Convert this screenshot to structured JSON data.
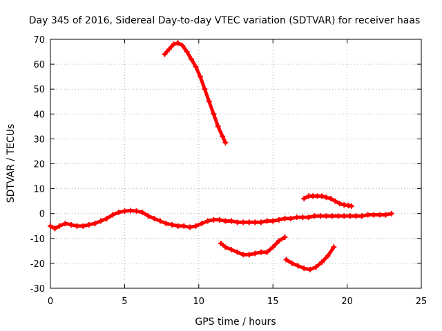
{
  "chart_data": {
    "type": "scatter",
    "title": "Day 345 of 2016, Sidereal Day-to-day VTEC variation (SDTVAR) for receiver haas",
    "xlabel": "GPS time / hours",
    "ylabel": "SDTVAR / TECUs",
    "xlim": [
      0,
      25
    ],
    "ylim": [
      -30,
      70
    ],
    "xticks": [
      0,
      5,
      10,
      15,
      20,
      25
    ],
    "yticks": [
      -30,
      -20,
      -10,
      0,
      10,
      20,
      30,
      40,
      50,
      60,
      70
    ],
    "grid": true,
    "color": "#ff0000",
    "marker": "plus",
    "series": [
      {
        "name": "main-arc",
        "x": [
          0.0,
          0.3,
          0.6,
          1.0,
          1.4,
          1.8,
          2.2,
          2.6,
          3.0,
          3.4,
          3.8,
          4.2,
          4.6,
          5.0,
          5.4,
          5.8,
          6.2,
          6.6,
          7.0,
          7.4,
          7.8,
          8.2,
          8.6,
          9.0,
          9.4,
          9.8,
          10.2,
          10.6,
          11.0,
          11.4,
          11.8,
          12.2,
          12.6,
          13.0,
          13.4,
          13.8,
          14.2,
          14.6,
          15.0,
          15.4,
          15.8,
          16.2,
          16.6,
          17.0,
          17.4,
          17.8,
          18.2,
          18.6,
          19.0,
          19.4,
          19.8,
          20.2,
          20.6,
          21.0,
          21.4,
          21.8,
          22.2,
          22.6,
          23.0
        ],
        "y": [
          -5,
          -6,
          -5,
          -4,
          -4.5,
          -5,
          -5,
          -4.5,
          -4,
          -3,
          -2,
          -0.5,
          0.5,
          1,
          1.2,
          1,
          0.5,
          -1,
          -2,
          -3,
          -4,
          -4.5,
          -5,
          -5,
          -5.5,
          -5,
          -4,
          -3,
          -2.5,
          -2.5,
          -3,
          -3,
          -3.5,
          -3.5,
          -3.5,
          -3.5,
          -3.5,
          -3,
          -3,
          -2.5,
          -2,
          -2,
          -1.5,
          -1.5,
          -1.5,
          -1,
          -1,
          -1,
          -1,
          -1,
          -1,
          -1,
          -1,
          -1,
          -0.5,
          -0.5,
          -0.5,
          -0.5,
          0
        ]
      },
      {
        "name": "high-arc",
        "x": [
          7.7,
          8.0,
          8.3,
          8.6,
          8.9,
          9.2,
          9.5,
          9.8,
          10.1,
          10.4,
          10.7,
          11.0,
          11.3,
          11.6,
          11.8
        ],
        "y": [
          64,
          66,
          68,
          68.5,
          67.5,
          65,
          62,
          59,
          55,
          50,
          45,
          40,
          35,
          31,
          28.5
        ]
      },
      {
        "name": "low-arc-1",
        "x": [
          11.5,
          11.8,
          12.2,
          12.6,
          13.0,
          13.4,
          13.8,
          14.2,
          14.6,
          15.0,
          15.4,
          15.8
        ],
        "y": [
          -12,
          -13.5,
          -14.5,
          -15.5,
          -16.5,
          -16.5,
          -16,
          -15.5,
          -15.5,
          -13.5,
          -11,
          -9.5
        ]
      },
      {
        "name": "low-arc-2",
        "x": [
          15.9,
          16.3,
          16.7,
          17.1,
          17.5,
          17.9,
          18.3,
          18.7,
          19.1
        ],
        "y": [
          -18.5,
          -20,
          -21,
          -22,
          -22.5,
          -21.5,
          -19.5,
          -17,
          -13.5
        ]
      },
      {
        "name": "upper-right-arc",
        "x": [
          17.1,
          17.4,
          17.7,
          18.0,
          18.3,
          18.6,
          18.9,
          19.2,
          19.5,
          19.8,
          20.1,
          20.3
        ],
        "y": [
          6,
          7,
          7,
          7,
          7,
          6.5,
          6,
          5,
          4,
          3.5,
          3.2,
          3
        ]
      }
    ]
  }
}
